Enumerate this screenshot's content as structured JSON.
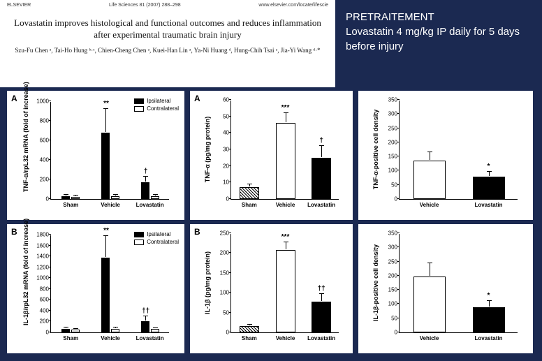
{
  "header": {
    "publisher": "ELSEVIER",
    "journal": "Life Sciences 81 (2007) 288–298",
    "url": "www.elsevier.com/locate/lifescie",
    "title": "Lovastatin improves histological and functional outcomes and reduces inflammation after experimental traumatic brain injury",
    "authors": "Szu-Fu Chen ᵃ, Tai-Ho Hung ᵇ·ᶜ, Chien-Cheng Chen ᵃ, Kuei-Han Lin ᵃ, Ya-Ni Huang ᵈ, Hung-Chih Tsai ᵃ, Jia-Yi Wang ᵈ·*"
  },
  "treatment": {
    "heading": "PRETRAITEMENT",
    "desc": "Lovastatin 4 mg/kg IP daily for 5 days before injury"
  },
  "legend": {
    "ipsi": "Ipsilateral",
    "contra": "Contralateral"
  },
  "groups3": [
    "Sham",
    "Vehicle",
    "Lovastatin"
  ],
  "groups2": [
    "Vehicle",
    "Lovastatin"
  ],
  "charts": {
    "A1": {
      "label": "A",
      "ylabel": "TNF-α/rpL32 mRNA (fold of increase)",
      "ymax": 1000,
      "ystep": 200,
      "ipsi": [
        30,
        680,
        170
      ],
      "ipsi_err": [
        15,
        240,
        60
      ],
      "contra": [
        25,
        30,
        30
      ],
      "contra_err": [
        10,
        12,
        12
      ],
      "sig": [
        null,
        "**",
        "†"
      ]
    },
    "B1": {
      "label": "B",
      "ylabel": "IL-1β/rpL32 mRNA (fold of increase)",
      "ymax": 1800,
      "ystep": 200,
      "ipsi": [
        60,
        1370,
        210
      ],
      "ipsi_err": [
        25,
        400,
        80
      ],
      "contra": [
        50,
        70,
        60
      ],
      "contra_err": [
        15,
        20,
        18
      ],
      "sig": [
        null,
        "**",
        "††"
      ]
    },
    "A2": {
      "label": "A",
      "ylabel": "TNF-α (pg/mg protein)",
      "ymax": 60,
      "ystep": 10,
      "vals": [
        7,
        46,
        25
      ],
      "err": [
        2,
        6,
        7
      ],
      "fills": [
        "hatch",
        "white",
        "black"
      ],
      "sig": [
        null,
        "***",
        "†"
      ]
    },
    "B2": {
      "label": "B",
      "ylabel": "IL-1β (pg/mg protein)",
      "ymax": 250,
      "ystep": 50,
      "vals": [
        15,
        207,
        78
      ],
      "err": [
        5,
        20,
        18
      ],
      "fills": [
        "hatch",
        "white",
        "black"
      ],
      "sig": [
        null,
        "***",
        "††"
      ]
    },
    "A3": {
      "ylabel": "TNF-α-positive cell density",
      "ymax": 350,
      "ystep": 50,
      "vals": [
        135,
        80
      ],
      "err": [
        30,
        15
      ],
      "fills": [
        "white",
        "black"
      ],
      "sig": [
        null,
        "*"
      ]
    },
    "B3": {
      "ylabel": "IL-1β-positive cell density",
      "ymax": 350,
      "ystep": 50,
      "vals": [
        198,
        90
      ],
      "err": [
        45,
        20
      ],
      "fills": [
        "white",
        "black"
      ],
      "sig": [
        null,
        "*"
      ]
    }
  }
}
